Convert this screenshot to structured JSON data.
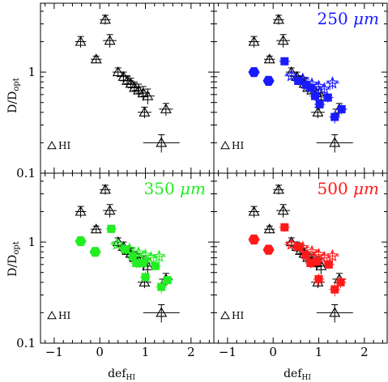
{
  "colors": {
    "hi": "#000000",
    "b250": "#1a1aff",
    "b350": "#22ee22",
    "b500": "#ff1a1a"
  },
  "axes": {
    "ylabel_main": "D/D",
    "ylabel_sub": "opt",
    "xlabel_main": "def",
    "xlabel_sub": "HI"
  },
  "chart_data": {
    "type": "scatter",
    "layout": "2x2 panels, shared axes",
    "x_scale": "linear",
    "y_scale": "log",
    "xlim": [
      -1.3,
      2.5
    ],
    "ylim": [
      0.1,
      4.8
    ],
    "x_ticks": [
      -1,
      0,
      1,
      2
    ],
    "x_tick_labels": [
      "−1",
      "0",
      "1",
      "2"
    ],
    "y_ticks": [
      0.1,
      1
    ],
    "y_tick_labels": [
      "0.1",
      "1"
    ],
    "xlabel": "def_HI",
    "ylabel": "D/D_opt",
    "legend": "bottom-left",
    "hi_legend": "HI",
    "hi_points": [
      {
        "x": -0.42,
        "y": 2.0,
        "xerr": 0.12,
        "yerr": 0.25
      },
      {
        "x": -0.08,
        "y": 1.34,
        "xerr": 0.12,
        "yerr": 0.1
      },
      {
        "x": 0.12,
        "y": 3.3,
        "xerr": 0.12,
        "yerr": 0.35
      },
      {
        "x": 0.22,
        "y": 2.05,
        "xerr": 0.15,
        "yerr": 0.3
      },
      {
        "x": 0.4,
        "y": 1.0,
        "xerr": 0.12,
        "yerr": 0.1
      },
      {
        "x": 0.52,
        "y": 0.9,
        "xerr": 0.15,
        "yerr": 0.1
      },
      {
        "x": 0.6,
        "y": 0.82,
        "xerr": 0.15,
        "yerr": 0.1
      },
      {
        "x": 0.68,
        "y": 0.77,
        "xerr": 0.15,
        "yerr": 0.1
      },
      {
        "x": 0.76,
        "y": 0.7,
        "xerr": 0.15,
        "yerr": 0.1
      },
      {
        "x": 0.85,
        "y": 0.66,
        "xerr": 0.15,
        "yerr": 0.1
      },
      {
        "x": 0.95,
        "y": 0.62,
        "xerr": 0.15,
        "yerr": 0.1
      },
      {
        "x": 1.05,
        "y": 0.58,
        "xerr": 0.15,
        "yerr": 0.1
      },
      {
        "x": 0.98,
        "y": 0.4,
        "xerr": 0.15,
        "yerr": 0.05
      },
      {
        "x": 1.45,
        "y": 0.43,
        "xerr": 0.15,
        "yerr": 0.06
      },
      {
        "x": 1.35,
        "y": 0.2,
        "xerr": 0.4,
        "yerr": 0.04
      }
    ],
    "panels": [
      {
        "label": "",
        "unit": "",
        "series": []
      },
      {
        "label": "250",
        "unit": "μm",
        "color_key": "b250",
        "series": [
          {
            "marker": "hexagon",
            "points": [
              {
                "x": -0.42,
                "y": 1.0,
                "xerr": 0.12,
                "yerr": 0.1
              },
              {
                "x": -0.1,
                "y": 0.82,
                "xerr": 0.1,
                "yerr": 0.06
              }
            ]
          },
          {
            "marker": "square",
            "points": [
              {
                "x": 0.25,
                "y": 1.28,
                "xerr": 0.12,
                "yerr": 0.12
              },
              {
                "x": 0.55,
                "y": 0.82,
                "xerr": 0.12,
                "yerr": 0.08
              },
              {
                "x": 0.72,
                "y": 0.75,
                "xerr": 0.12,
                "yerr": 0.08
              },
              {
                "x": 0.82,
                "y": 0.7,
                "xerr": 0.12,
                "yerr": 0.07
              },
              {
                "x": 0.92,
                "y": 0.58,
                "xerr": 0.12,
                "yerr": 0.06
              },
              {
                "x": 1.02,
                "y": 0.48,
                "xerr": 0.12,
                "yerr": 0.06
              },
              {
                "x": 1.2,
                "y": 0.56,
                "xerr": 0.12,
                "yerr": 0.06
              },
              {
                "x": 1.35,
                "y": 0.36,
                "xerr": 0.12,
                "yerr": 0.05
              },
              {
                "x": 1.5,
                "y": 0.43,
                "xerr": 0.12,
                "yerr": 0.05
              }
            ]
          },
          {
            "marker": "star",
            "points": [
              {
                "x": 0.4,
                "y": 0.92,
                "xerr": 0.15,
                "yerr": 0.1
              },
              {
                "x": 0.65,
                "y": 0.85,
                "xerr": 0.15,
                "yerr": 0.1
              },
              {
                "x": 0.85,
                "y": 0.76,
                "xerr": 0.15,
                "yerr": 0.1
              },
              {
                "x": 1.0,
                "y": 0.72,
                "xerr": 0.15,
                "yerr": 0.1
              },
              {
                "x": 1.12,
                "y": 0.68,
                "xerr": 0.15,
                "yerr": 0.1
              },
              {
                "x": 1.3,
                "y": 0.78,
                "xerr": 0.15,
                "yerr": 0.1
              }
            ]
          }
        ]
      },
      {
        "label": "350",
        "unit": "μm",
        "color_key": "b350",
        "series": [
          {
            "marker": "hexagon",
            "points": [
              {
                "x": -0.42,
                "y": 1.02,
                "xerr": 0.12,
                "yerr": 0.1
              },
              {
                "x": -0.1,
                "y": 0.8,
                "xerr": 0.1,
                "yerr": 0.06
              }
            ]
          },
          {
            "marker": "square",
            "points": [
              {
                "x": 0.25,
                "y": 1.35,
                "xerr": 0.12,
                "yerr": 0.12
              },
              {
                "x": 0.55,
                "y": 0.85,
                "xerr": 0.12,
                "yerr": 0.08
              },
              {
                "x": 0.72,
                "y": 0.72,
                "xerr": 0.12,
                "yerr": 0.08
              },
              {
                "x": 0.8,
                "y": 0.62,
                "xerr": 0.12,
                "yerr": 0.07
              },
              {
                "x": 0.95,
                "y": 0.62,
                "xerr": 0.12,
                "yerr": 0.06
              },
              {
                "x": 1.0,
                "y": 0.45,
                "xerr": 0.12,
                "yerr": 0.06
              },
              {
                "x": 1.22,
                "y": 0.58,
                "xerr": 0.12,
                "yerr": 0.06
              },
              {
                "x": 1.35,
                "y": 0.36,
                "xerr": 0.12,
                "yerr": 0.05
              },
              {
                "x": 1.48,
                "y": 0.42,
                "xerr": 0.12,
                "yerr": 0.05
              }
            ]
          },
          {
            "marker": "star",
            "points": [
              {
                "x": 0.38,
                "y": 0.95,
                "xerr": 0.15,
                "yerr": 0.1
              },
              {
                "x": 0.65,
                "y": 0.85,
                "xerr": 0.15,
                "yerr": 0.1
              },
              {
                "x": 0.85,
                "y": 0.78,
                "xerr": 0.15,
                "yerr": 0.1
              },
              {
                "x": 1.0,
                "y": 0.74,
                "xerr": 0.15,
                "yerr": 0.1
              },
              {
                "x": 1.12,
                "y": 0.7,
                "xerr": 0.15,
                "yerr": 0.1
              },
              {
                "x": 1.3,
                "y": 0.72,
                "xerr": 0.15,
                "yerr": 0.1
              }
            ]
          }
        ]
      },
      {
        "label": "500",
        "unit": "μm",
        "color_key": "b500",
        "series": [
          {
            "marker": "hexagon",
            "points": [
              {
                "x": -0.42,
                "y": 1.06,
                "xerr": 0.12,
                "yerr": 0.1
              },
              {
                "x": -0.1,
                "y": 0.84,
                "xerr": 0.1,
                "yerr": 0.06
              }
            ]
          },
          {
            "marker": "square",
            "points": [
              {
                "x": 0.25,
                "y": 1.4,
                "xerr": 0.12,
                "yerr": 0.14
              },
              {
                "x": 0.55,
                "y": 0.9,
                "xerr": 0.12,
                "yerr": 0.08
              },
              {
                "x": 0.72,
                "y": 0.74,
                "xerr": 0.12,
                "yerr": 0.08
              },
              {
                "x": 0.82,
                "y": 0.62,
                "xerr": 0.12,
                "yerr": 0.07
              },
              {
                "x": 0.95,
                "y": 0.64,
                "xerr": 0.12,
                "yerr": 0.06
              },
              {
                "x": 1.0,
                "y": 0.43,
                "xerr": 0.12,
                "yerr": 0.06
              },
              {
                "x": 1.22,
                "y": 0.6,
                "xerr": 0.12,
                "yerr": 0.06
              },
              {
                "x": 1.35,
                "y": 0.34,
                "xerr": 0.12,
                "yerr": 0.05
              },
              {
                "x": 1.48,
                "y": 0.4,
                "xerr": 0.12,
                "yerr": 0.05
              }
            ]
          },
          {
            "marker": "star",
            "points": [
              {
                "x": 0.4,
                "y": 0.95,
                "xerr": 0.15,
                "yerr": 0.1
              },
              {
                "x": 0.65,
                "y": 0.88,
                "xerr": 0.15,
                "yerr": 0.1
              },
              {
                "x": 0.85,
                "y": 0.8,
                "xerr": 0.15,
                "yerr": 0.1
              },
              {
                "x": 1.0,
                "y": 0.75,
                "xerr": 0.15,
                "yerr": 0.1
              },
              {
                "x": 1.12,
                "y": 0.7,
                "xerr": 0.15,
                "yerr": 0.1
              },
              {
                "x": 1.3,
                "y": 0.73,
                "xerr": 0.15,
                "yerr": 0.1
              }
            ]
          }
        ]
      }
    ]
  }
}
